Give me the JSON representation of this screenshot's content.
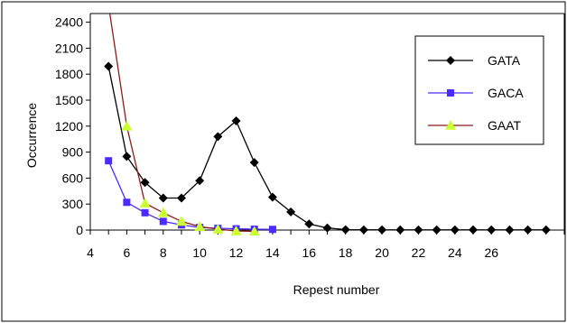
{
  "chart_data": {
    "type": "line",
    "title": "",
    "xlabel": "Repest number",
    "ylabel": "Occurrence",
    "xlim": [
      4,
      30
    ],
    "ylim": [
      0,
      2500
    ],
    "x_ticks": [
      "4",
      "6",
      "8",
      "10",
      "12",
      "14",
      "16",
      "18",
      "20",
      "22",
      "24",
      "26"
    ],
    "x_tick_values": [
      4,
      6,
      8,
      10,
      12,
      14,
      16,
      18,
      20,
      22,
      24,
      26
    ],
    "y_ticks": [
      "0",
      "300",
      "600",
      "900",
      "1200",
      "1500",
      "1800",
      "2100",
      "2400"
    ],
    "y_tick_values": [
      0,
      300,
      600,
      900,
      1200,
      1500,
      1800,
      2100,
      2400
    ],
    "grid": false,
    "legend_position": "top-right",
    "series": [
      {
        "name": "GATA",
        "color": "#000000",
        "marker": "diamond",
        "points": [
          [
            5,
            1890
          ],
          [
            6,
            850
          ],
          [
            7,
            550
          ],
          [
            8,
            370
          ],
          [
            9,
            370
          ],
          [
            10,
            570
          ],
          [
            11,
            1080
          ],
          [
            12,
            1260
          ],
          [
            13,
            780
          ],
          [
            14,
            380
          ],
          [
            15,
            210
          ],
          [
            16,
            70
          ],
          [
            17,
            25
          ],
          [
            18,
            5
          ],
          [
            19,
            3
          ],
          [
            20,
            2
          ],
          [
            21,
            2
          ],
          [
            22,
            2
          ],
          [
            23,
            2
          ],
          [
            24,
            2
          ],
          [
            25,
            2
          ],
          [
            26,
            2
          ],
          [
            27,
            2
          ],
          [
            28,
            2
          ],
          [
            29,
            2
          ]
        ]
      },
      {
        "name": "GACA",
        "color": "#4b2bff",
        "marker": "square",
        "points": [
          [
            5,
            800
          ],
          [
            6,
            320
          ],
          [
            7,
            200
          ],
          [
            8,
            100
          ],
          [
            9,
            60
          ],
          [
            10,
            30
          ],
          [
            11,
            20
          ],
          [
            12,
            15
          ],
          [
            13,
            10
          ],
          [
            14,
            8
          ]
        ]
      },
      {
        "name": "GAAT",
        "color": "#8b1a1a",
        "marker_color": "#ccff33",
        "marker": "triangle",
        "points": [
          [
            5,
            2600
          ],
          [
            6,
            1200
          ],
          [
            7,
            310
          ],
          [
            8,
            200
          ],
          [
            9,
            100
          ],
          [
            10,
            40
          ],
          [
            11,
            10
          ],
          [
            12,
            -10
          ],
          [
            13,
            -15
          ]
        ]
      }
    ]
  }
}
